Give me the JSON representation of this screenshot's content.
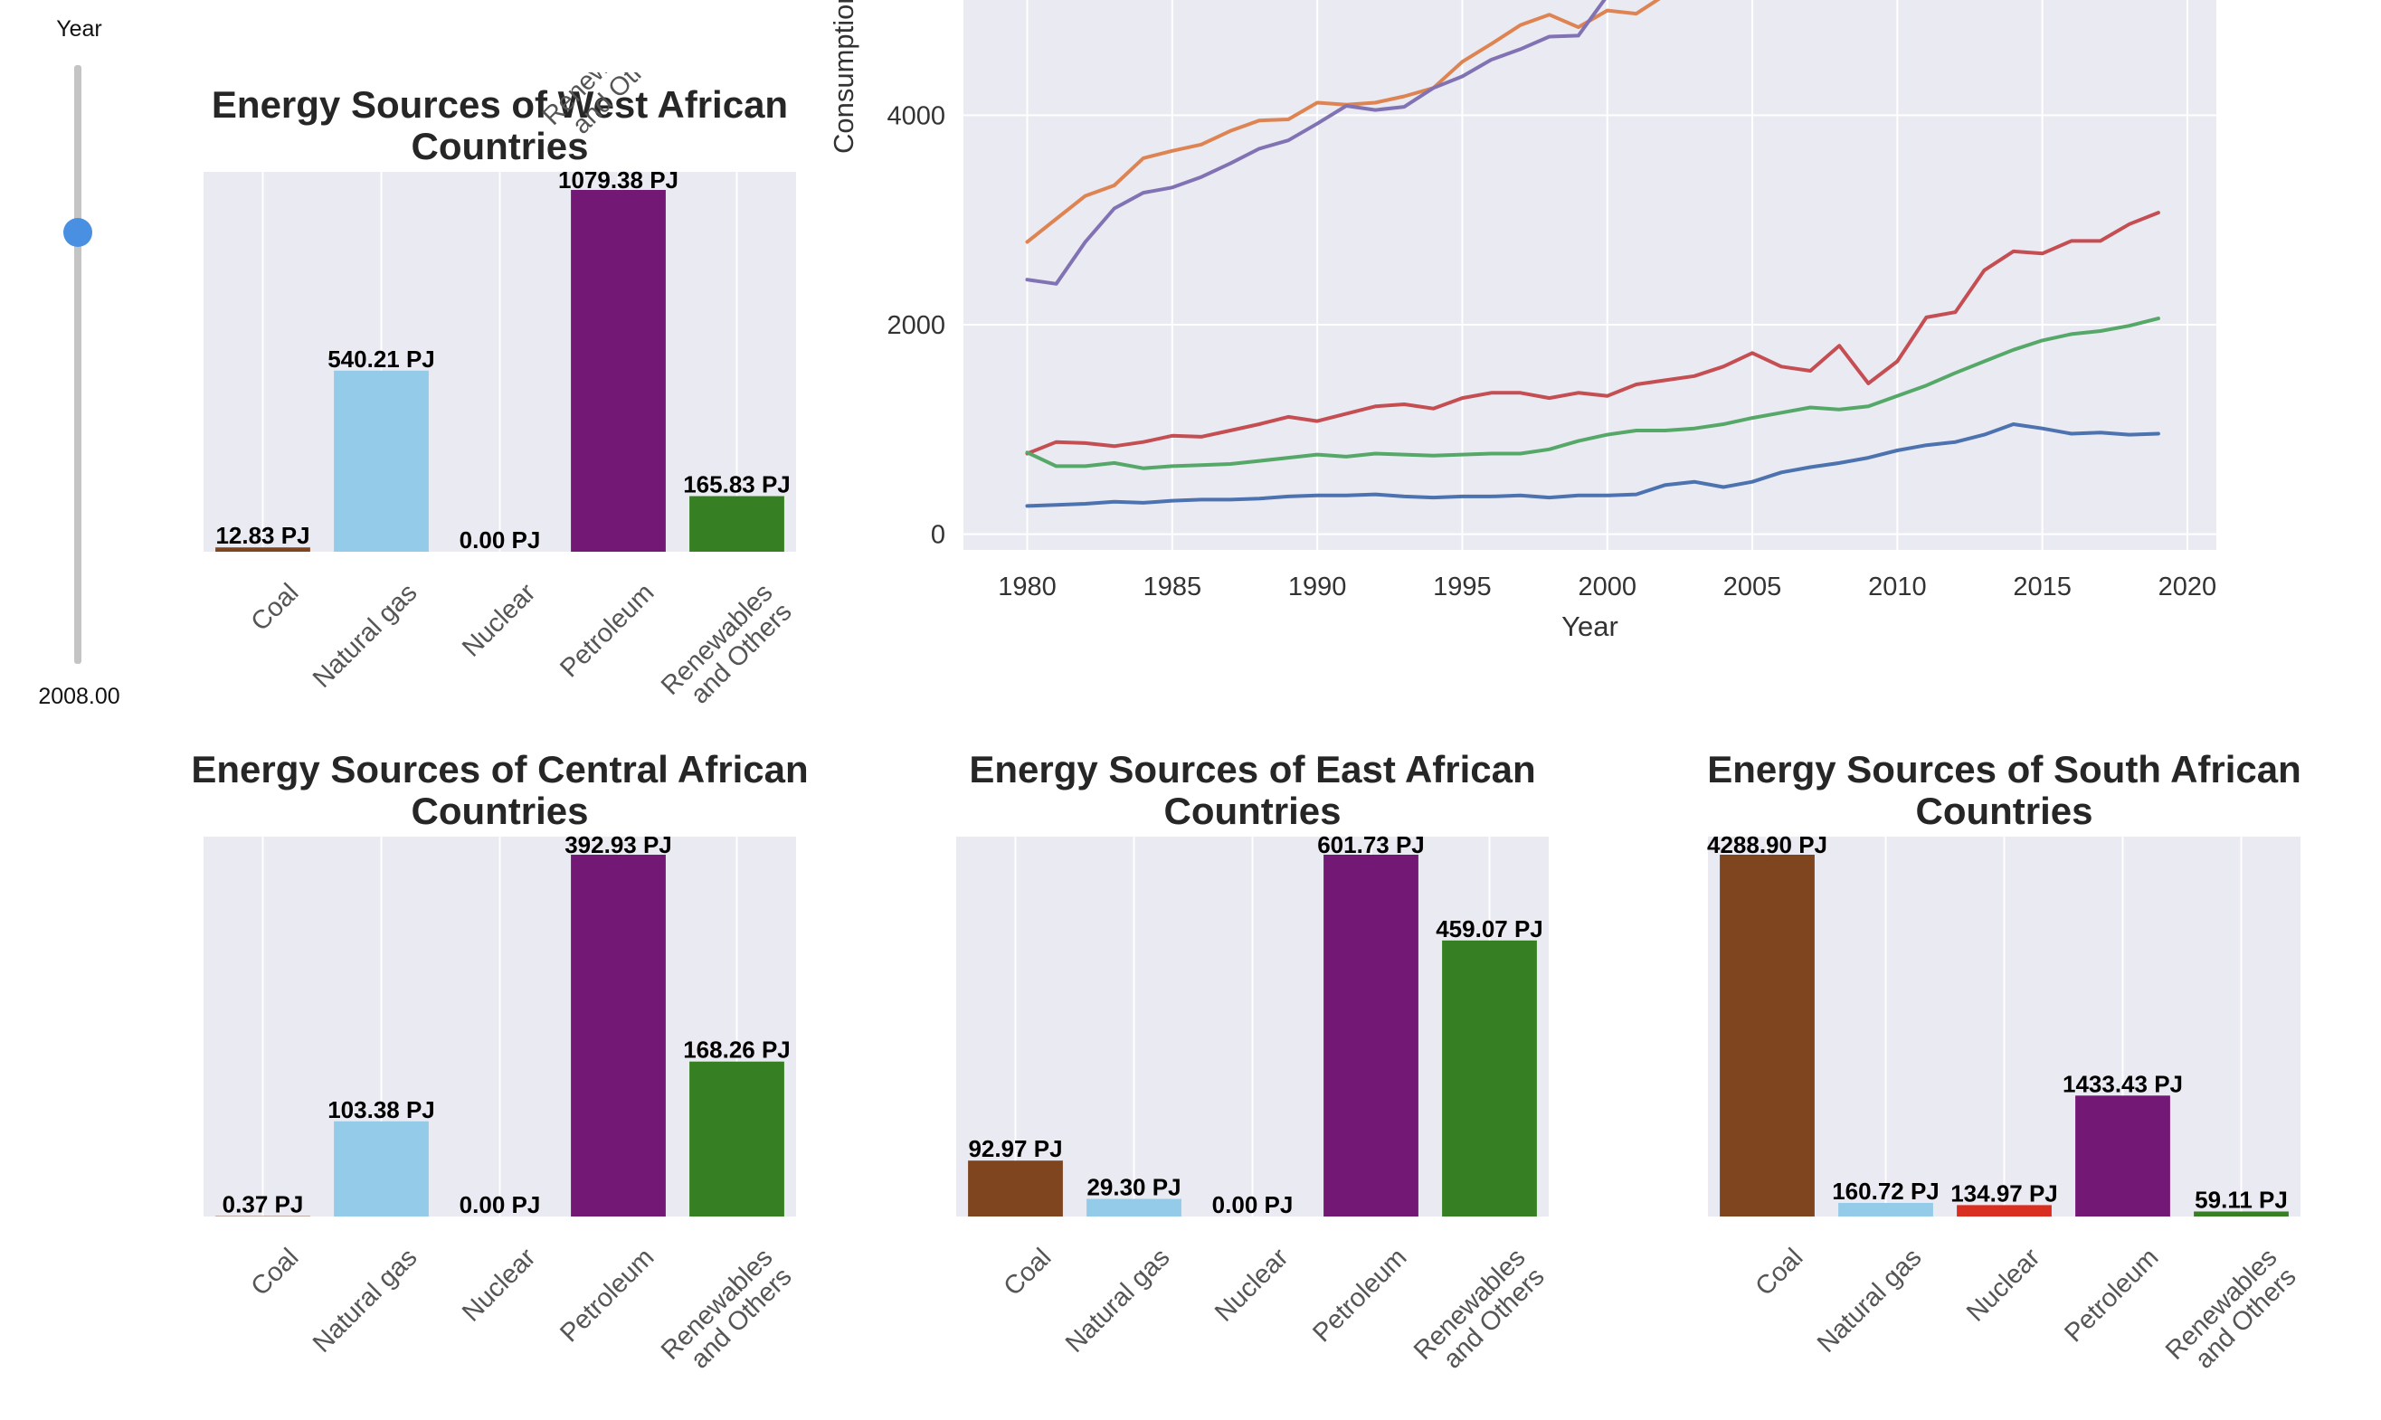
{
  "slider": {
    "label": "Year",
    "value_text": "2008.00",
    "value": 2008,
    "fraction": 0.72,
    "track_color": "#c4c4c4",
    "thumb_color": "#4a90e2"
  },
  "chart_data": [
    {
      "type": "bar",
      "title": "Energy Sources of West African Countries",
      "title_lines": [
        "Energy Sources of West African",
        "Countries"
      ],
      "categories": [
        "Coal",
        "Natural gas",
        "Nuclear",
        "Petroleum",
        "Renewables and Others"
      ],
      "category_lines": [
        [
          "Coal"
        ],
        [
          "Natural gas"
        ],
        [
          "Nuclear"
        ],
        [
          "Petroleum"
        ],
        [
          "Renewables",
          "and Others"
        ]
      ],
      "values": [
        12.83,
        540.21,
        0.0,
        1079.38,
        165.83
      ],
      "value_labels": [
        "12.83 PJ",
        "540.21 PJ",
        "0.00 PJ",
        "1079.38 PJ",
        "165.83 PJ"
      ],
      "colors": [
        "#7f451f",
        "#93cbe8",
        "#d92f21",
        "#741875",
        "#377f23"
      ],
      "xlabel": "",
      "ylabel": "",
      "ylim": [
        0,
        1133.3
      ],
      "grid": true
    },
    {
      "type": "bar",
      "title": "Energy Sources of Central African Countries",
      "title_lines": [
        "Energy Sources of Central African",
        "Countries"
      ],
      "categories": [
        "Coal",
        "Natural gas",
        "Nuclear",
        "Petroleum",
        "Renewables and Others"
      ],
      "category_lines": [
        [
          "Coal"
        ],
        [
          "Natural gas"
        ],
        [
          "Nuclear"
        ],
        [
          "Petroleum"
        ],
        [
          "Renewables",
          "and Others"
        ]
      ],
      "values": [
        0.37,
        103.38,
        0.0,
        392.93,
        168.26
      ],
      "value_labels": [
        "0.37 PJ",
        "103.38 PJ",
        "0.00 PJ",
        "392.93 PJ",
        "168.26 PJ"
      ],
      "colors": [
        "#7f451f",
        "#93cbe8",
        "#d92f21",
        "#741875",
        "#377f23"
      ],
      "xlabel": "",
      "ylabel": "",
      "ylim": [
        0,
        412.6
      ],
      "grid": true
    },
    {
      "type": "bar",
      "title": "Energy Sources of East African Countries",
      "title_lines": [
        "Energy Sources of East African",
        "Countries"
      ],
      "categories": [
        "Coal",
        "Natural gas",
        "Nuclear",
        "Petroleum",
        "Renewables and Others"
      ],
      "category_lines": [
        [
          "Coal"
        ],
        [
          "Natural gas"
        ],
        [
          "Nuclear"
        ],
        [
          "Petroleum"
        ],
        [
          "Renewables",
          "and Others"
        ]
      ],
      "values": [
        92.97,
        29.3,
        0.0,
        601.73,
        459.07
      ],
      "value_labels": [
        "92.97 PJ",
        "29.30 PJ",
        "0.00 PJ",
        "601.73 PJ",
        "459.07 PJ"
      ],
      "colors": [
        "#7f451f",
        "#93cbe8",
        "#d92f21",
        "#741875",
        "#377f23"
      ],
      "xlabel": "",
      "ylabel": "",
      "ylim": [
        0,
        631.8
      ],
      "grid": true
    },
    {
      "type": "bar",
      "title": "Energy Sources of South African Countries",
      "title_lines": [
        "Energy Sources of South African",
        "Countries"
      ],
      "categories": [
        "Coal",
        "Natural gas",
        "Nuclear",
        "Petroleum",
        "Renewables and Others"
      ],
      "category_lines": [
        [
          "Coal"
        ],
        [
          "Natural gas"
        ],
        [
          "Nuclear"
        ],
        [
          "Petroleum"
        ],
        [
          "Renewables",
          "and Others"
        ]
      ],
      "values": [
        4288.9,
        160.72,
        134.97,
        1433.43,
        59.11
      ],
      "value_labels": [
        "4288.90 PJ",
        "160.72 PJ",
        "134.97 PJ",
        "1433.43 PJ",
        "59.11 PJ"
      ],
      "colors": [
        "#7f451f",
        "#93cbe8",
        "#d92f21",
        "#741875",
        "#377f23"
      ],
      "xlabel": "",
      "ylabel": "",
      "ylim": [
        0,
        4503.3
      ],
      "grid": true
    },
    {
      "type": "line",
      "title": "",
      "xlabel": "Year",
      "ylabel": "Consumption",
      "x": [
        1980,
        1981,
        1982,
        1983,
        1984,
        1985,
        1986,
        1987,
        1988,
        1989,
        1990,
        1991,
        1992,
        1993,
        1994,
        1995,
        1996,
        1997,
        1998,
        1999,
        2000,
        2001,
        2002,
        2003,
        2004,
        2005,
        2006,
        2007,
        2008,
        2009,
        2010,
        2011,
        2012,
        2013,
        2014,
        2015,
        2016,
        2017,
        2018,
        2019
      ],
      "xticks": [
        1980,
        1985,
        1990,
        1995,
        2000,
        2005,
        2010,
        2015,
        2020
      ],
      "yticks": [
        0,
        2000,
        4000
      ],
      "xlim": [
        1977.8,
        2021
      ],
      "ylim": [
        -150,
        5100
      ],
      "grid": true,
      "series": [
        {
          "color": "#dd8452",
          "values": [
            2790,
            3010,
            3230,
            3330,
            3590,
            3660,
            3720,
            3850,
            3950,
            3960,
            4120,
            4100,
            4120,
            4180,
            4260,
            4510,
            4680,
            4860,
            4960,
            4840,
            5000,
            4970,
            5150,
            null,
            null,
            null,
            null,
            null,
            null,
            null,
            null,
            null,
            null,
            null,
            null,
            null,
            null,
            null,
            null,
            null
          ]
        },
        {
          "color": "#8172b3",
          "values": [
            2430,
            2390,
            2790,
            3110,
            3260,
            3310,
            3410,
            3540,
            3680,
            3760,
            3920,
            4090,
            4050,
            4080,
            4260,
            4370,
            4530,
            4630,
            4750,
            4760,
            5140,
            null,
            null,
            null,
            null,
            null,
            null,
            null,
            null,
            null,
            null,
            null,
            null,
            null,
            null,
            null,
            null,
            null,
            null,
            null
          ]
        },
        {
          "color": "#c44e52",
          "values": [
            770,
            880,
            870,
            840,
            880,
            940,
            930,
            990,
            1050,
            1120,
            1080,
            1150,
            1220,
            1240,
            1200,
            1300,
            1350,
            1350,
            1300,
            1350,
            1320,
            1430,
            1470,
            1510,
            1600,
            1730,
            1600,
            1560,
            1800,
            1440,
            1650,
            2070,
            2120,
            2520,
            2700,
            2680,
            2800,
            2800,
            2960,
            3070
          ]
        },
        {
          "color": "#55a868",
          "values": [
            780,
            650,
            650,
            680,
            630,
            650,
            660,
            670,
            700,
            730,
            760,
            740,
            770,
            760,
            750,
            760,
            770,
            770,
            810,
            890,
            950,
            990,
            990,
            1010,
            1050,
            1110,
            1160,
            1210,
            1190,
            1220,
            1320,
            1420,
            1540,
            1650,
            1760,
            1850,
            1910,
            1940,
            1990,
            2060
          ]
        },
        {
          "color": "#4c72b0",
          "values": [
            270,
            280,
            290,
            310,
            300,
            320,
            330,
            330,
            340,
            360,
            370,
            370,
            380,
            360,
            350,
            360,
            360,
            370,
            350,
            370,
            370,
            380,
            470,
            500,
            450,
            500,
            590,
            640,
            680,
            730,
            800,
            850,
            880,
            950,
            1050,
            1010,
            960,
            970,
            950,
            960
          ]
        }
      ]
    }
  ]
}
